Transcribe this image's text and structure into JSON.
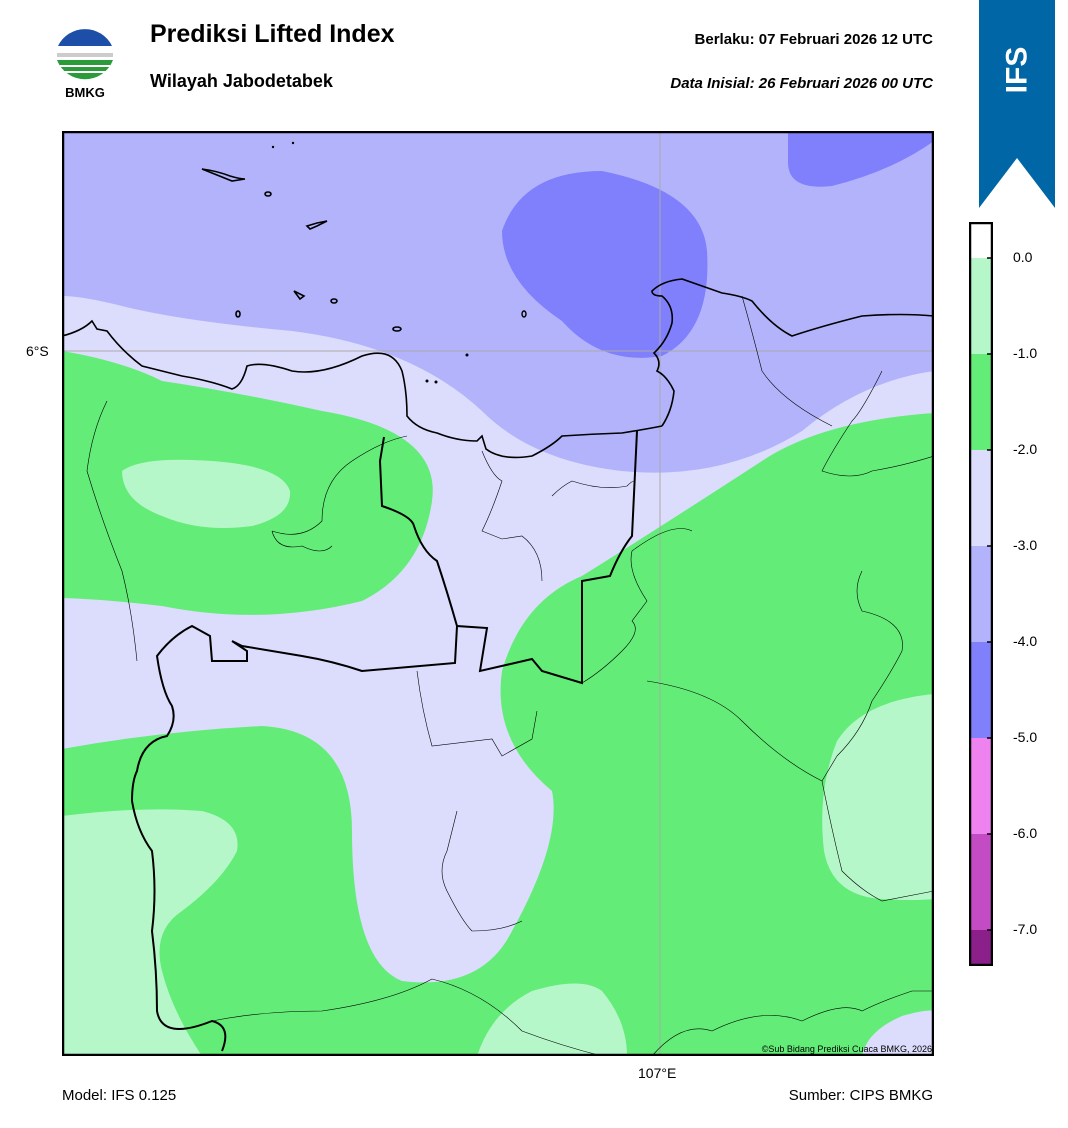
{
  "header": {
    "title": "Prediksi Lifted Index",
    "subtitle": "Wilayah Jabodetabek",
    "valid_label": "Berlaku:  07 Februari 2026 12 UTC",
    "init_label": "Data Inisial:  26 Februari 2026 00 UTC"
  },
  "logo": {
    "text": "BMKG",
    "icon": "bmkg-logo"
  },
  "badge": {
    "text": "IFS",
    "color": "#0066a6"
  },
  "map": {
    "lat_label": "6°S",
    "lon_label": "107°E",
    "credit": "©Sub Bidang Prediksi Cuaca BMKG, 2026"
  },
  "colorbar": {
    "labels": [
      "0.0",
      "-1.0",
      "-2.0",
      "-3.0",
      "-4.0",
      "-5.0",
      "-6.0",
      "-7.0"
    ],
    "colors": [
      "#b5f7c9",
      "#63ec77",
      "#dcdcfc",
      "#b3b3fb",
      "#8080fc",
      "#ee82ee",
      "#c34bc3",
      "#8b208b"
    ],
    "levels": [
      {
        "from": 0.0,
        "to": -1.0,
        "color": "#b5f7c9"
      },
      {
        "from": -1.0,
        "to": -2.0,
        "color": "#63ec77"
      },
      {
        "from": -2.0,
        "to": -3.0,
        "color": "#dcdcfc"
      },
      {
        "from": -3.0,
        "to": -4.0,
        "color": "#b3b3fb"
      },
      {
        "from": -4.0,
        "to": -5.0,
        "color": "#8080fc"
      },
      {
        "from": -5.0,
        "to": -6.0,
        "color": "#ee82ee"
      },
      {
        "from": -6.0,
        "to": -7.0,
        "color": "#c34bc3"
      },
      {
        "from": -7.0,
        "to": -8.0,
        "color": "#8b208b"
      }
    ]
  },
  "footer": {
    "model": "Model: IFS 0.125",
    "source": "Sumber: CIPS BMKG"
  }
}
